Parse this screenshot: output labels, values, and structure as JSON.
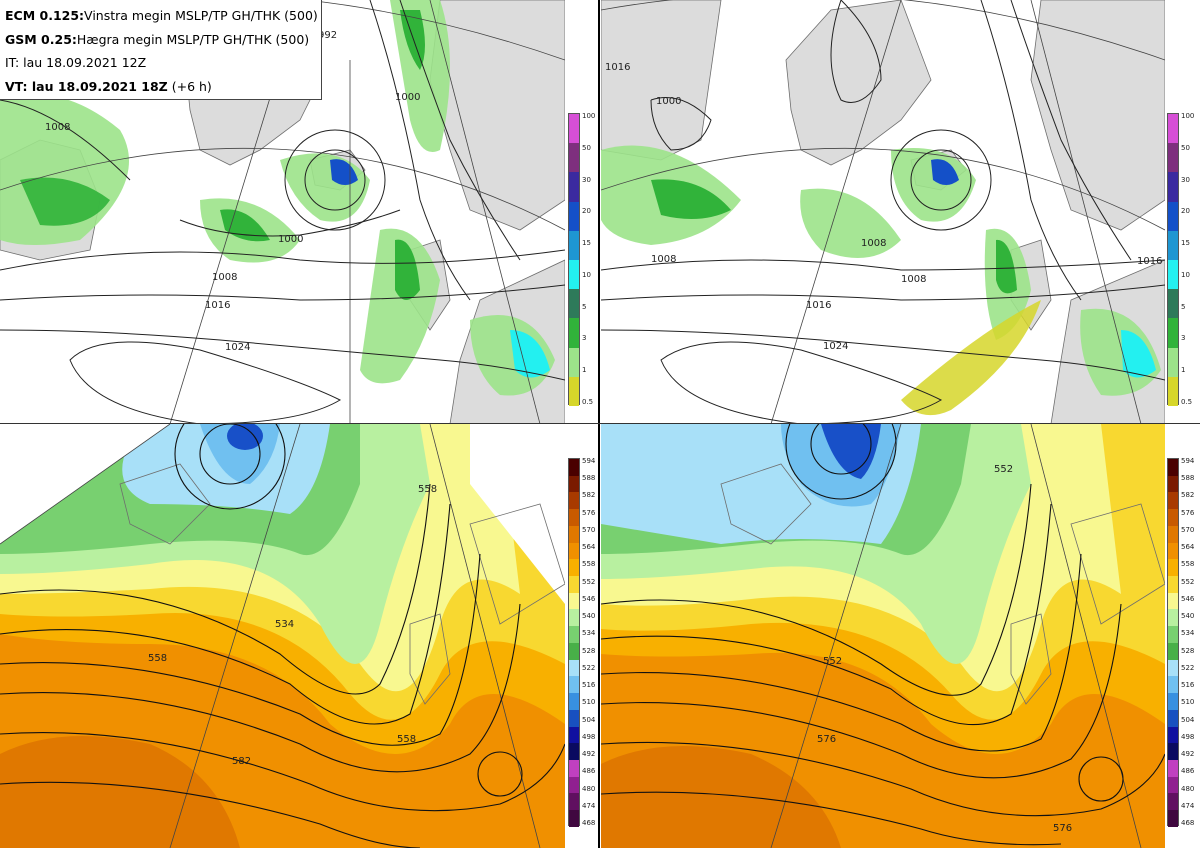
{
  "header": {
    "ecm_model": "ECM 0.125:",
    "ecm_desc": "Vinstra megin MSLP/TP GH/THK (500)",
    "gsm_model": "GSM 0.25:",
    "gsm_desc": "Hægra megin MSLP/TP GH/THK (500)",
    "init_time": "IT: lau 18.09.2021 12Z",
    "valid_time": "VT: lau 18.09.2021 18Z",
    "lead_time": "(+6 h)"
  },
  "precip_colorbar": {
    "ticks": [
      "100",
      "50",
      "30",
      "20",
      "15",
      "10",
      "5",
      "3",
      "1",
      "0.5"
    ],
    "colors": [
      "#d64fd6",
      "#7e2f7e",
      "#3b2aa0",
      "#1450c8",
      "#1e96d2",
      "#23f0f0",
      "#2e7a5a",
      "#31b33a",
      "#9ce38a",
      "#d6d62a"
    ]
  },
  "thk_colorbar": {
    "ticks": [
      "594",
      "588",
      "582",
      "576",
      "570",
      "564",
      "558",
      "552",
      "546",
      "540",
      "534",
      "528",
      "522",
      "516",
      "510",
      "504",
      "498",
      "492",
      "486",
      "480",
      "474",
      "468"
    ],
    "colors": [
      "#4a0000",
      "#7a1a00",
      "#a83a00",
      "#c85a00",
      "#e07800",
      "#f09000",
      "#f8b000",
      "#f8d830",
      "#f8f890",
      "#b8f0a0",
      "#78d070",
      "#48b048",
      "#a8e0f8",
      "#70c0f0",
      "#3890e0",
      "#1850c0",
      "#1010a0",
      "#0a0a60",
      "#c040c0",
      "#902090",
      "#601060",
      "#400840"
    ]
  },
  "left_map": {
    "mslp_labels": [
      "1000",
      "1008",
      "1016",
      "1024",
      "992",
      "1000",
      "1008"
    ],
    "thk_labels": [
      "534",
      "558",
      "558",
      "582",
      "558"
    ]
  },
  "right_map": {
    "mslp_labels": [
      "1016",
      "1016",
      "1008",
      "1008",
      "1008",
      "1000",
      "1024",
      "1016"
    ],
    "thk_labels": [
      "552",
      "576",
      "576",
      "552"
    ]
  },
  "colors": {
    "land": "#dcdcdc",
    "coast": "#6e6e6e",
    "isobar": "#222222",
    "sea": "#ffffff"
  }
}
